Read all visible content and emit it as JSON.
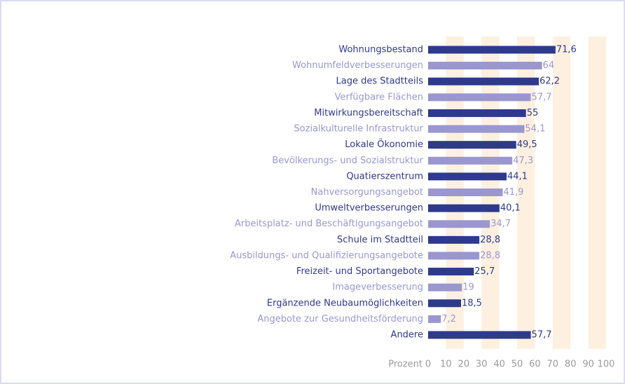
{
  "chart_data": {
    "type": "bar",
    "orientation": "horizontal",
    "categories": [
      "Wohnungsbestand",
      "Wohnumfeldverbesserungen",
      "Lage des Stadtteils",
      "Verfügbare Flächen",
      "Mitwirkungsbereitschaft",
      "Sozialkulturelle Infrastruktur",
      "Lokale Ökonomie",
      "Bevölkerungs- und Sozialstruktur",
      "Quatierszentrum",
      "Nahversorgungsangebot",
      "Umweltverbesserungen",
      "Arbeitsplatz- und Beschäftigungsangebot",
      "Schule im Stadtteil",
      "Ausbildungs- und Qualifizierungsangebote",
      "Freizeit- und Sportangebote",
      "Imageverbesserung",
      "Ergänzende Neubaumöglichkeiten",
      "Angebote zur Gesundheitsförderung",
      "Andere"
    ],
    "values": [
      71.6,
      64,
      62.2,
      57.7,
      55,
      54.1,
      49.5,
      47.3,
      44.1,
      41.9,
      40.1,
      34.7,
      28.8,
      28.8,
      25.7,
      19,
      18.5,
      7.2,
      57.7
    ],
    "value_labels": [
      "71,6",
      "64",
      "62,2",
      "57,7",
      "55",
      "54,1",
      "49,5",
      "47,3",
      "44,1",
      "41,9",
      "40,1",
      "34,7",
      "28,8",
      "28,8",
      "25,7",
      "19",
      "18,5",
      "7,2",
      "57,7"
    ],
    "colors": [
      "#2e3a8c",
      "#9a97cf",
      "#2e3a8c",
      "#9a97cf",
      "#2e3a8c",
      "#9a97cf",
      "#2e3a8c",
      "#9a97cf",
      "#2e3a8c",
      "#9a97cf",
      "#2e3a8c",
      "#9a97cf",
      "#2e3a8c",
      "#9a97cf",
      "#2e3a8c",
      "#9a97cf",
      "#2e3a8c",
      "#9a97cf",
      "#2e3a8c"
    ],
    "x_label": "Prozent",
    "xlim": [
      0,
      100
    ],
    "xticks": [
      0,
      10,
      20,
      30,
      40,
      50,
      60,
      70,
      80,
      90,
      100
    ],
    "band_color": "#fdf0e1"
  }
}
